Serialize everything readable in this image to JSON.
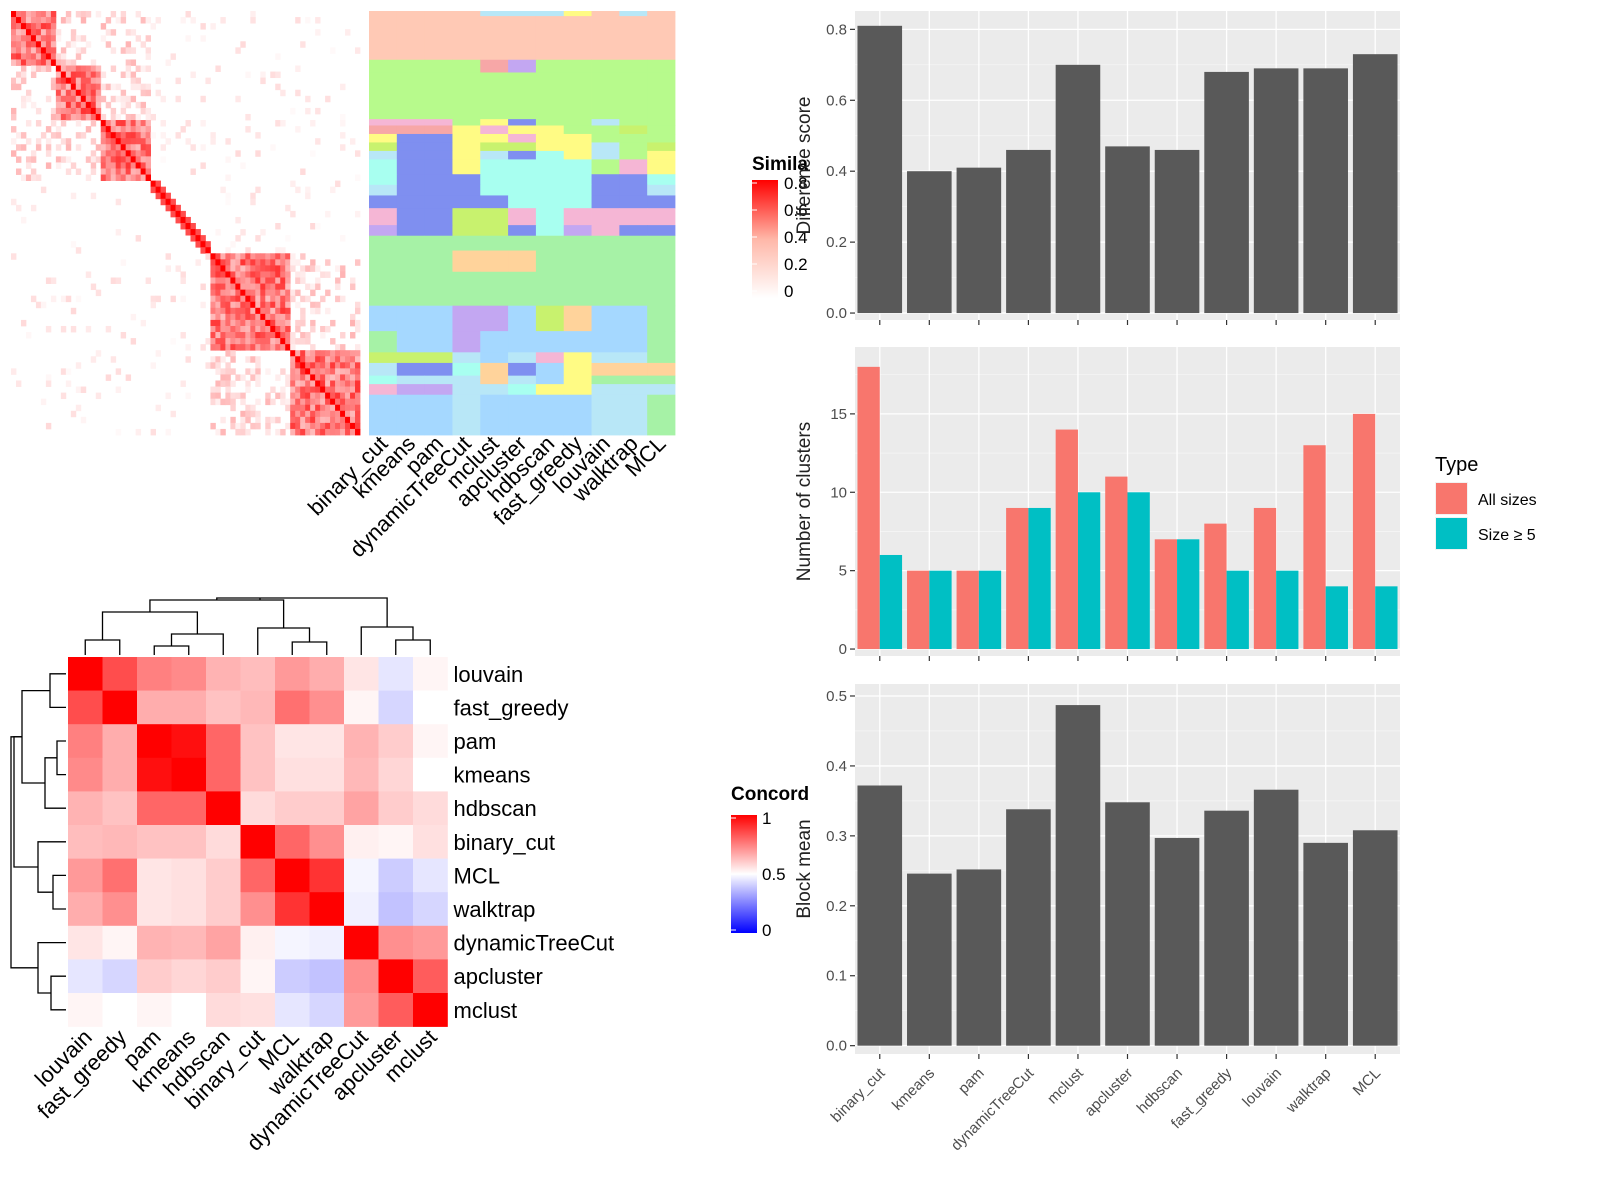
{
  "methods": [
    "binary_cut",
    "kmeans",
    "pam",
    "dynamicTreeCut",
    "mclust",
    "apcluster",
    "hdbscan",
    "fast_greedy",
    "louvain",
    "walktrap",
    "MCL"
  ],
  "similarity_panel": {
    "legend_title": "Simila",
    "legend_ticks": [
      "0.8",
      "0.6",
      "0.4",
      "0.2",
      "0"
    ],
    "column_labels": [
      "binary_cut",
      "kmeans",
      "pam",
      "dynamicTreeCut",
      "mclust",
      "apcluster",
      "hdbscan",
      "fast_greedy",
      "louvain",
      "walktrap",
      "MCL"
    ],
    "colors": {
      "high": "#ff0000",
      "low": "#ffffff"
    }
  },
  "concordance_panel": {
    "legend_title": "Concord",
    "legend_ticks": [
      "1",
      "0.5",
      "0"
    ],
    "order": [
      "louvain",
      "fast_greedy",
      "pam",
      "kmeans",
      "hdbscan",
      "binary_cut",
      "MCL",
      "walktrap",
      "dynamicTreeCut",
      "apcluster",
      "mclust"
    ],
    "matrix": [
      [
        1.0,
        0.85,
        0.75,
        0.73,
        0.65,
        0.63,
        0.7,
        0.66,
        0.55,
        0.45,
        0.52
      ],
      [
        0.85,
        1.0,
        0.66,
        0.66,
        0.62,
        0.64,
        0.78,
        0.72,
        0.52,
        0.42,
        0.5
      ],
      [
        0.75,
        0.66,
        1.0,
        0.97,
        0.8,
        0.62,
        0.55,
        0.55,
        0.65,
        0.6,
        0.52
      ],
      [
        0.73,
        0.66,
        0.97,
        1.0,
        0.8,
        0.62,
        0.56,
        0.56,
        0.64,
        0.58,
        0.5
      ],
      [
        0.65,
        0.62,
        0.8,
        0.8,
        1.0,
        0.57,
        0.6,
        0.6,
        0.68,
        0.6,
        0.57
      ],
      [
        0.63,
        0.64,
        0.62,
        0.62,
        0.57,
        1.0,
        0.8,
        0.72,
        0.53,
        0.52,
        0.56
      ],
      [
        0.7,
        0.78,
        0.55,
        0.56,
        0.6,
        0.8,
        1.0,
        0.9,
        0.48,
        0.4,
        0.45
      ],
      [
        0.66,
        0.72,
        0.55,
        0.56,
        0.6,
        0.72,
        0.9,
        1.0,
        0.47,
        0.38,
        0.42
      ],
      [
        0.55,
        0.52,
        0.65,
        0.64,
        0.68,
        0.53,
        0.48,
        0.47,
        1.0,
        0.72,
        0.7
      ],
      [
        0.45,
        0.42,
        0.6,
        0.58,
        0.6,
        0.52,
        0.4,
        0.38,
        0.72,
        1.0,
        0.82
      ],
      [
        0.52,
        0.5,
        0.52,
        0.5,
        0.57,
        0.56,
        0.45,
        0.42,
        0.7,
        0.82,
        1.0
      ]
    ]
  },
  "chart_data": [
    {
      "type": "bar",
      "categories": [
        "binary_cut",
        "kmeans",
        "pam",
        "dynamicTreeCut",
        "mclust",
        "apcluster",
        "hdbscan",
        "fast_greedy",
        "louvain",
        "walktrap",
        "MCL"
      ],
      "values": [
        0.81,
        0.4,
        0.41,
        0.46,
        0.7,
        0.47,
        0.46,
        0.68,
        0.69,
        0.69,
        0.73
      ],
      "ylabel": "Difference score",
      "ylim": [
        0,
        0.84
      ],
      "yticks": [
        "0.0",
        "0.2",
        "0.4",
        "0.6",
        "0.8"
      ],
      "color": "#595959"
    },
    {
      "type": "bar",
      "categories": [
        "binary_cut",
        "kmeans",
        "pam",
        "dynamicTreeCut",
        "mclust",
        "apcluster",
        "hdbscan",
        "fast_greedy",
        "louvain",
        "walktrap",
        "MCL"
      ],
      "series": [
        {
          "name": "All sizes",
          "values": [
            18,
            5,
            5,
            9,
            14,
            11,
            7,
            8,
            9,
            13,
            15
          ],
          "color": "#f8766d"
        },
        {
          "name": "Size ≥ 5",
          "values": [
            6,
            5,
            5,
            9,
            10,
            10,
            7,
            5,
            5,
            4,
            4
          ],
          "color": "#00bfc4"
        }
      ],
      "ylabel": "Number of clusters",
      "ylim": [
        0,
        19
      ],
      "yticks": [
        "0",
        "5",
        "10",
        "15"
      ],
      "legend_title": "Type"
    },
    {
      "type": "bar",
      "categories": [
        "binary_cut",
        "kmeans",
        "pam",
        "dynamicTreeCut",
        "mclust",
        "apcluster",
        "hdbscan",
        "fast_greedy",
        "louvain",
        "walktrap",
        "MCL"
      ],
      "values": [
        0.372,
        0.246,
        0.252,
        0.338,
        0.487,
        0.348,
        0.297,
        0.336,
        0.366,
        0.29,
        0.308
      ],
      "ylabel": "Block mean",
      "ylim": [
        0,
        0.51
      ],
      "yticks": [
        "0.0",
        "0.1",
        "0.2",
        "0.3",
        "0.4",
        "0.5"
      ],
      "color": "#595959"
    }
  ]
}
